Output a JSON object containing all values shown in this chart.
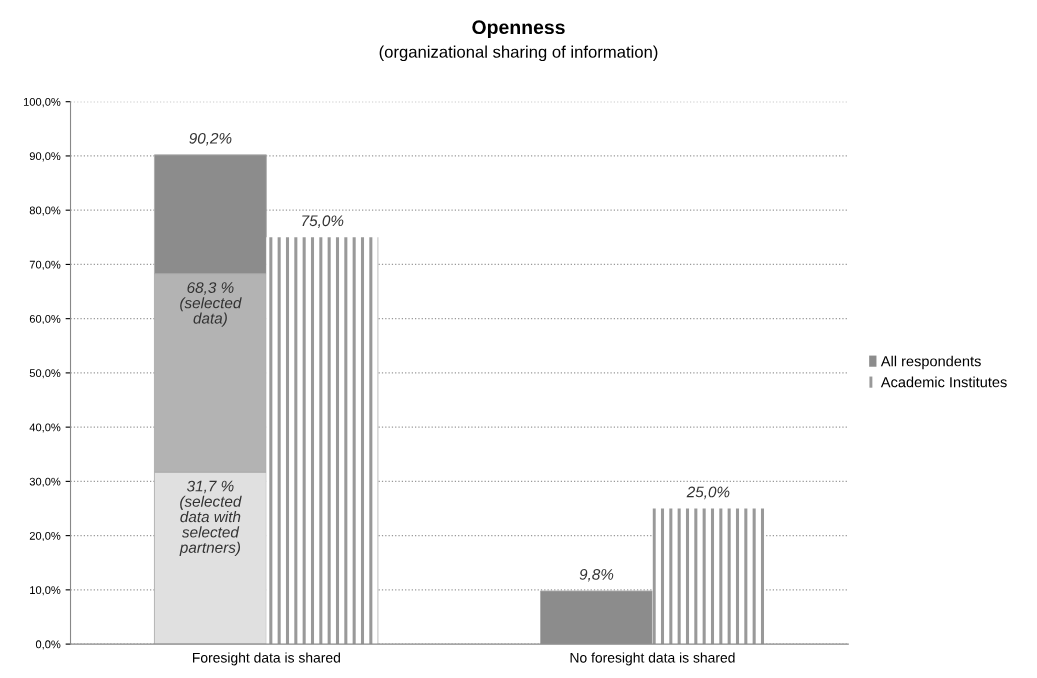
{
  "chart_data": {
    "type": "bar",
    "title": "Openness",
    "subtitle": "(organizational sharing of information)",
    "categories": [
      null,
      null,
      null,
      null
    ],
    "annotations": [
      "Foresight data is shared",
      "No foresight data is shared",
      {
        "text": "68,3 %\n(selected\ndata)",
        "y": 68.3
      }
    ],
    "totals": [
      "90,2%",
      null,
      "9,8%",
      null
    ],
    "stacked": true,
    "series": [
      {
        "color": "#e0e0e0",
        "values": [
          31.7,
          null,
          null,
          null
        ],
        "value_labels": [
          "31,7 %\n(selected\ndata with\nselected\npartners)",
          null,
          null,
          null
        ]
      },
      {
        "color": "#b3b3b3",
        "values": [
          36.6,
          null,
          null,
          null
        ]
      },
      {
        "name": "All respondents",
        "color": "#8c8c8c",
        "values": [
          21.9,
          null,
          9.8,
          null
        ]
      },
      {
        "name": "Academic Institutes",
        "color": "#999999",
        "values": [
          null,
          75.0,
          null,
          25.0
        ],
        "value_labels": [
          null,
          "75,0%",
          null,
          "25,0%"
        ]
      }
    ],
    "ylim": [
      0,
      100
    ],
    "yticks": [
      {
        "value": 0,
        "label": "0,0%"
      },
      {
        "value": 10,
        "label": "10,0%"
      },
      {
        "value": 20,
        "label": "20,0%"
      },
      {
        "value": 30,
        "label": "30,0%"
      },
      {
        "value": 40,
        "label": "40,0%"
      },
      {
        "value": 50,
        "label": "50,0%"
      },
      {
        "value": 60,
        "label": "60,0%"
      },
      {
        "value": 70,
        "label": "70,0%"
      },
      {
        "value": 80,
        "label": "80,0%"
      },
      {
        "value": 90,
        "label": "90,0%"
      },
      {
        "value": 100,
        "label": "100,0%"
      }
    ],
    "grid": "y",
    "legend": "right"
  }
}
